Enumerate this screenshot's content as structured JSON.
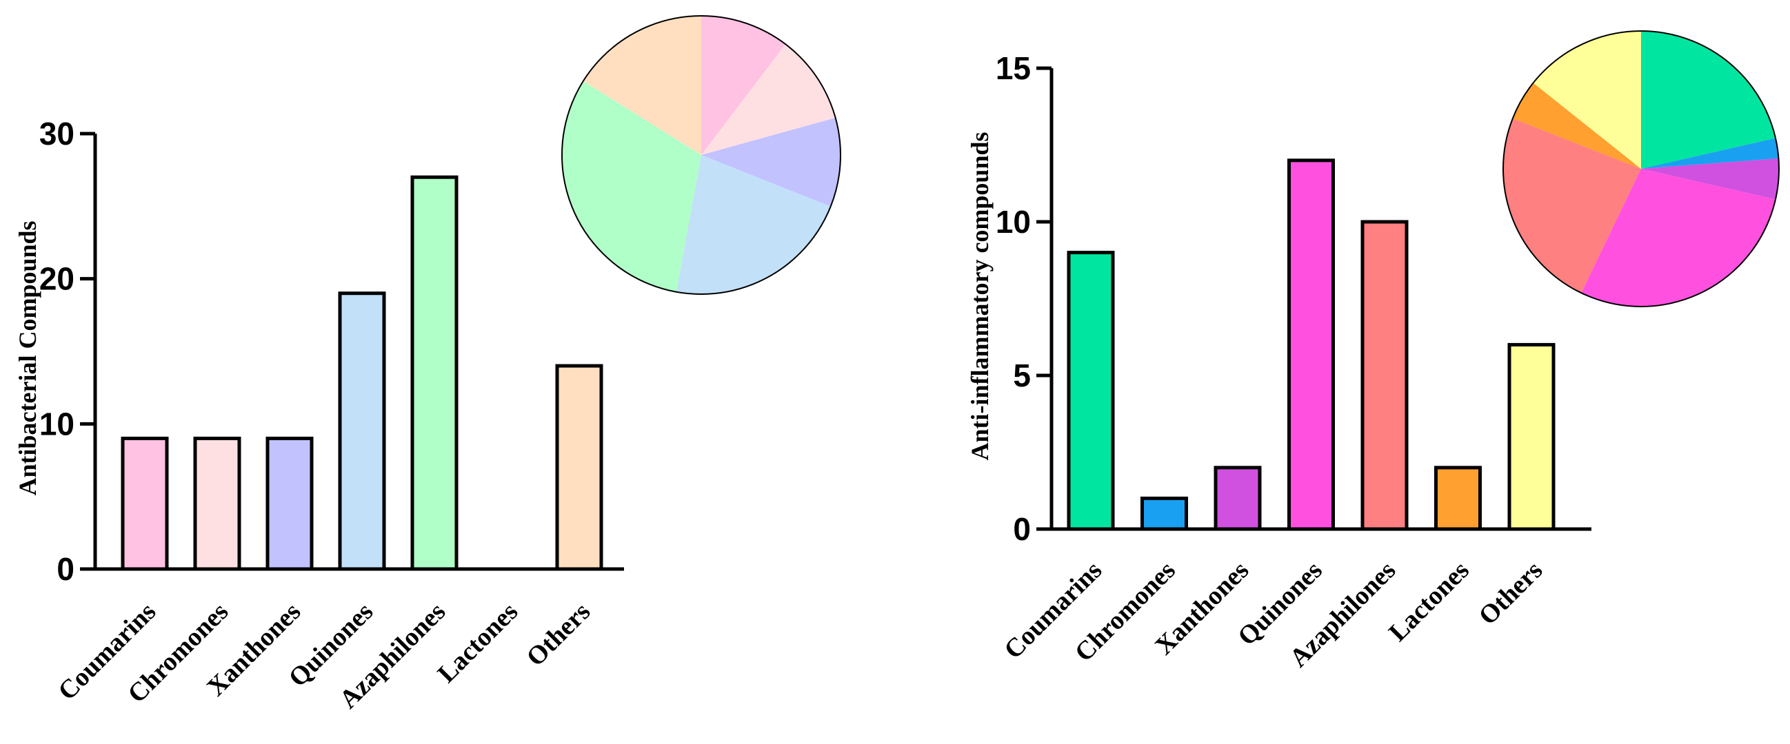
{
  "chart_data": [
    {
      "type": "bar",
      "ylabel": "Antibacterial Compounds",
      "xlabel": "",
      "title": "",
      "categories": [
        "Coumarins",
        "Chromones",
        "Xanthones",
        "Quinones",
        "Azaphilones",
        "Lactones",
        "Others"
      ],
      "values": [
        9,
        9,
        9,
        19,
        27,
        0,
        14
      ],
      "colors": [
        "#ffc2e2",
        "#ffe0e2",
        "#c2c2ff",
        "#c2e0f8",
        "#b0ffc8",
        "#ffffff",
        "#ffdfc0"
      ],
      "ylim": [
        0,
        30
      ],
      "yticks": [
        "0",
        "10",
        "20",
        "30"
      ],
      "inset_pie": {
        "values": [
          9,
          9,
          9,
          19,
          27,
          0,
          14
        ],
        "colors": [
          "#ffc2e2",
          "#ffe0e2",
          "#c2c2ff",
          "#c2e0f8",
          "#b0ffc8",
          "#ffffff",
          "#ffdfc0"
        ]
      }
    },
    {
      "type": "bar",
      "ylabel": "Anti-inflammatory compounds",
      "xlabel": "",
      "title": "",
      "categories": [
        "Coumarins",
        "Chromones",
        "Xanthones",
        "Quinones",
        "Azaphilones",
        "Lactones",
        "Others"
      ],
      "values": [
        9,
        1,
        2,
        12,
        10,
        2,
        6
      ],
      "colors": [
        "#00e5a0",
        "#1aa0f0",
        "#d050e0",
        "#ff50e0",
        "#ff8080",
        "#ffa030",
        "#ffff99"
      ],
      "ylim": [
        0,
        15
      ],
      "yticks": [
        "0",
        "5",
        "10",
        "15"
      ],
      "inset_pie": {
        "values": [
          9,
          1,
          2,
          12,
          10,
          2,
          6
        ],
        "colors": [
          "#00e5a0",
          "#1aa0f0",
          "#d050e0",
          "#ff50e0",
          "#ff8080",
          "#ffa030",
          "#ffff99"
        ]
      }
    }
  ]
}
